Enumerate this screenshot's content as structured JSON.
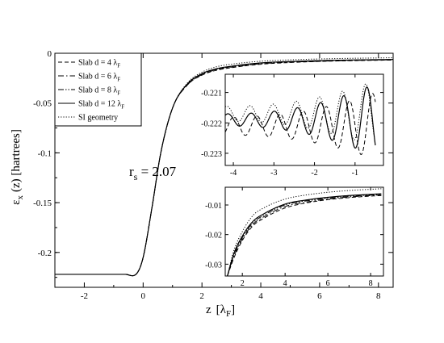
{
  "chart_data": [
    {
      "type": "line",
      "xlabel": "z",
      "xlabel_unit": "λ",
      "xlabel_unit_sub": "F",
      "ylabel_sym": "ε",
      "ylabel_sub": "x",
      "ylabel_rest": "(z)  [hartrees]",
      "xlim": [
        -3,
        8.5
      ],
      "ylim": [
        -0.235,
        0.0
      ],
      "xticks": [
        -2,
        0,
        2,
        4,
        6,
        8
      ],
      "xtick_labels": [
        "-2",
        "0",
        "2",
        "4",
        "6",
        "8"
      ],
      "yticks": [
        0,
        -0.05,
        -0.1,
        -0.15,
        -0.2
      ],
      "ytick_labels": [
        "0",
        "-0.05",
        "-0.1",
        "-0.15",
        "-0.2"
      ],
      "annotation": {
        "text": "r",
        "sub": "s",
        "rest": " = 2.07"
      },
      "legend_position": "top-left",
      "series": [
        {
          "name": "Slab   d = 4 λ",
          "name_sub": "F",
          "style": "dashed",
          "dx": [
            -3,
            -0.6,
            -0.2,
            0,
            0.3,
            0.6,
            1,
            1.5,
            2,
            2.5,
            3,
            4,
            5,
            6,
            7,
            8,
            8.5
          ],
          "y": [
            -0.222,
            -0.222,
            -0.2205,
            -0.205,
            -0.155,
            -0.1,
            -0.055,
            -0.032,
            -0.022,
            -0.017,
            -0.0145,
            -0.011,
            -0.0093,
            -0.0082,
            -0.0075,
            -0.007,
            -0.0068
          ]
        },
        {
          "name": "Slab   d = 6 λ",
          "name_sub": "F",
          "style": "dashdot",
          "dx": [
            -3,
            -0.6,
            -0.2,
            0,
            0.3,
            0.6,
            1,
            1.5,
            2,
            2.5,
            3,
            4,
            5,
            6,
            7,
            8,
            8.5
          ],
          "y": [
            -0.222,
            -0.222,
            -0.2205,
            -0.205,
            -0.155,
            -0.1,
            -0.055,
            -0.032,
            -0.0215,
            -0.0165,
            -0.014,
            -0.0105,
            -0.009,
            -0.008,
            -0.0073,
            -0.0068,
            -0.0066
          ]
        },
        {
          "name": "Slab   d = 8 λ",
          "name_sub": "F",
          "style": "dashdotdot",
          "dx": [
            -3,
            -0.6,
            -0.2,
            0,
            0.3,
            0.6,
            1,
            1.5,
            2,
            2.5,
            3,
            4,
            5,
            6,
            7,
            8,
            8.5
          ],
          "y": [
            -0.222,
            -0.222,
            -0.2205,
            -0.205,
            -0.155,
            -0.1,
            -0.055,
            -0.031,
            -0.021,
            -0.016,
            -0.0135,
            -0.01,
            -0.0086,
            -0.0077,
            -0.0071,
            -0.0066,
            -0.0064
          ]
        },
        {
          "name": "Slab   d = 12 λ",
          "name_sub": "F",
          "style": "solid",
          "dx": [
            -3,
            -0.6,
            -0.2,
            0,
            0.3,
            0.6,
            1,
            1.5,
            2,
            2.5,
            3,
            4,
            5,
            6,
            7,
            8,
            8.5
          ],
          "y": [
            -0.222,
            -0.222,
            -0.2205,
            -0.205,
            -0.155,
            -0.1,
            -0.055,
            -0.031,
            -0.0205,
            -0.0155,
            -0.013,
            -0.0097,
            -0.0083,
            -0.0074,
            -0.0068,
            -0.0064,
            -0.0062
          ]
        },
        {
          "name": "SI geometry",
          "style": "dotted",
          "dx": [
            -3,
            -0.6,
            -0.2,
            0,
            0.3,
            0.6,
            1,
            1.5,
            2,
            2.5,
            3,
            4,
            5,
            6,
            7,
            8,
            8.5
          ],
          "y": [
            -0.222,
            -0.222,
            -0.2205,
            -0.205,
            -0.155,
            -0.1,
            -0.055,
            -0.03,
            -0.019,
            -0.0135,
            -0.011,
            -0.008,
            -0.0066,
            -0.0057,
            -0.0051,
            -0.0047,
            -0.0045
          ]
        }
      ]
    },
    {
      "type": "line",
      "title": "inset-upper",
      "xlim": [
        -4.2,
        -0.3
      ],
      "ylim": [
        -0.2234,
        -0.2204
      ],
      "xticks": [
        -4,
        -3,
        -2,
        -1
      ],
      "xtick_labels": [
        "-4",
        "-3",
        "-2",
        "-1"
      ],
      "yticks": [
        -0.221,
        -0.222,
        -0.223
      ],
      "ytick_labels": [
        "-0.221",
        "-0.222",
        "-0.223"
      ],
      "series": [
        {
          "style": "dashed",
          "osc": true,
          "x_range": [
            -4.2,
            -0.5
          ],
          "center": -0.2221,
          "amp_left": 0.0003,
          "amp_right": 0.0011,
          "period": 0.57,
          "phase": 0.0
        },
        {
          "style": "solid",
          "osc": true,
          "x_range": [
            -4.2,
            -0.5
          ],
          "center": -0.2219,
          "amp_left": 0.0002,
          "amp_right": 0.0012,
          "period": 0.57,
          "phase": 0.25
        },
        {
          "style": "dotted",
          "osc": true,
          "x_range": [
            -4.2,
            -0.5
          ],
          "center": -0.2217,
          "amp_left": 0.00025,
          "amp_right": 0.0011,
          "period": 0.57,
          "phase": 0.3
        }
      ]
    },
    {
      "type": "line",
      "title": "inset-lower",
      "xlim": [
        1.2,
        8.6
      ],
      "ylim": [
        -0.034,
        -0.004
      ],
      "xticks": [
        2,
        4,
        6,
        8
      ],
      "xtick_labels": [
        "2",
        "4",
        "6",
        "8"
      ],
      "yticks": [
        -0.01,
        -0.02,
        -0.03
      ],
      "ytick_labels": [
        "-0.01",
        "-0.02",
        "-0.03"
      ],
      "series": [
        {
          "style": "dashed",
          "dx": [
            1.3,
            1.6,
            2,
            2.5,
            3,
            4,
            5,
            6,
            7,
            8,
            8.5
          ],
          "y": [
            -0.034,
            -0.028,
            -0.022,
            -0.017,
            -0.0145,
            -0.011,
            -0.0093,
            -0.0082,
            -0.0075,
            -0.007,
            -0.0068
          ]
        },
        {
          "style": "dashdot",
          "dx": [
            1.3,
            1.6,
            2,
            2.5,
            3,
            4,
            5,
            6,
            7,
            8,
            8.5
          ],
          "y": [
            -0.034,
            -0.0275,
            -0.0215,
            -0.0165,
            -0.014,
            -0.0105,
            -0.009,
            -0.008,
            -0.0073,
            -0.0068,
            -0.0066
          ]
        },
        {
          "style": "dashdotdot",
          "dx": [
            1.3,
            1.6,
            2,
            2.5,
            3,
            4,
            5,
            6,
            7,
            8,
            8.5
          ],
          "y": [
            -0.034,
            -0.027,
            -0.021,
            -0.016,
            -0.0135,
            -0.01,
            -0.0086,
            -0.0077,
            -0.0071,
            -0.0066,
            -0.0064
          ]
        },
        {
          "style": "solid",
          "dx": [
            1.3,
            1.6,
            2,
            2.5,
            3,
            4,
            5,
            6,
            7,
            8,
            8.5
          ],
          "y": [
            -0.034,
            -0.0265,
            -0.0205,
            -0.0155,
            -0.013,
            -0.0097,
            -0.0083,
            -0.0074,
            -0.0068,
            -0.0064,
            -0.0062
          ]
        },
        {
          "style": "dotted",
          "dx": [
            1.3,
            1.6,
            2,
            2.5,
            3,
            4,
            5,
            6,
            7,
            8,
            8.5
          ],
          "y": [
            -0.034,
            -0.0255,
            -0.019,
            -0.0135,
            -0.011,
            -0.008,
            -0.0066,
            -0.0057,
            -0.0051,
            -0.0047,
            -0.0045
          ]
        }
      ]
    }
  ]
}
